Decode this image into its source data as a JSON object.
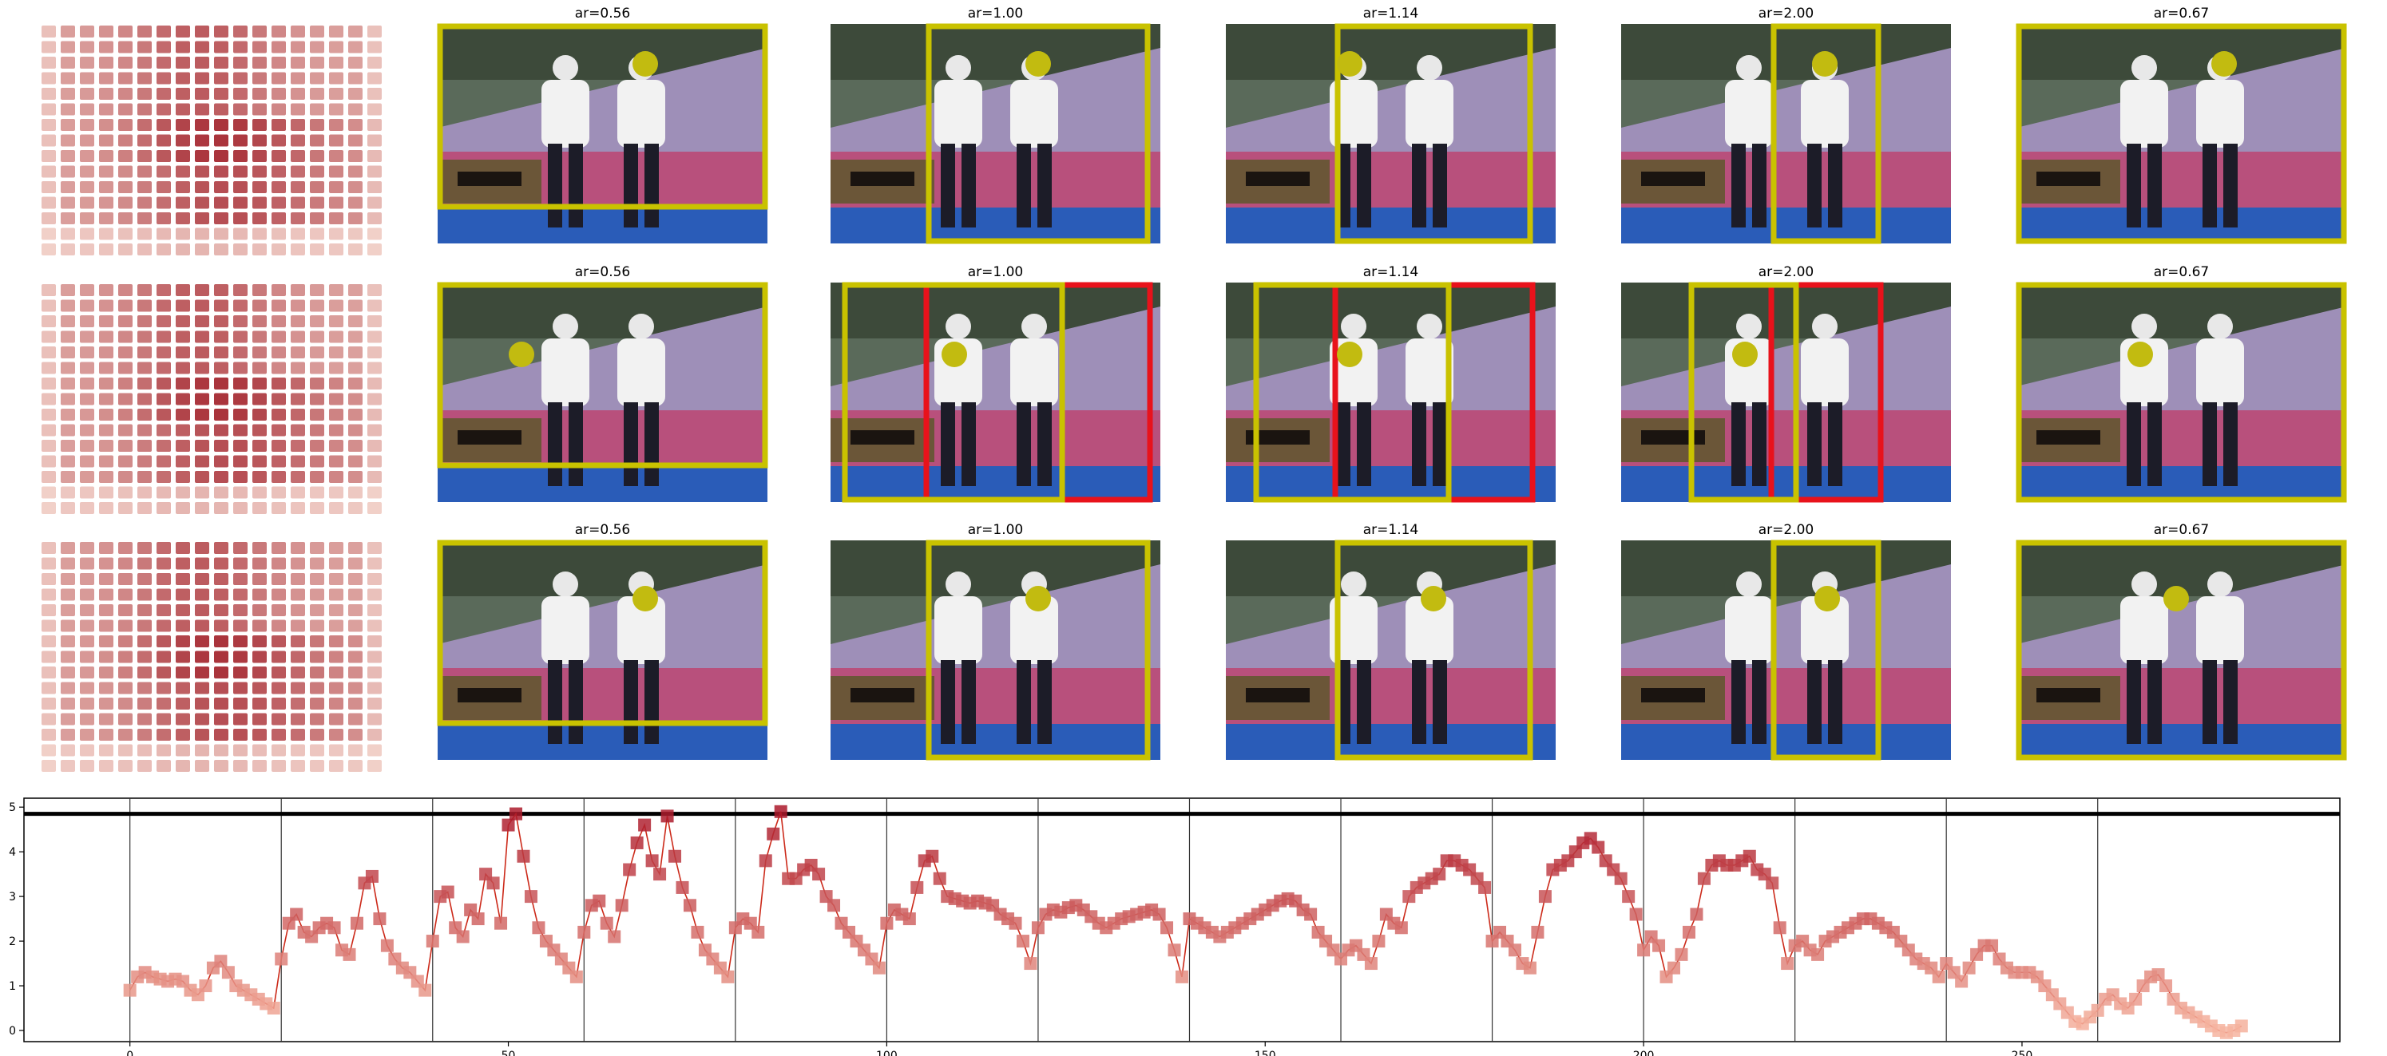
{
  "figure": {
    "rows": [
      {
        "titles": [
          "ar=0.56",
          "ar=1.00",
          "ar=1.14",
          "ar=2.00",
          "ar=0.67"
        ]
      },
      {
        "titles": [
          "ar=0.56",
          "ar=1.00",
          "ar=1.14",
          "ar=2.00",
          "ar=0.67"
        ]
      },
      {
        "titles": [
          "ar=0.56",
          "ar=1.00",
          "ar=1.14",
          "ar=2.00",
          "ar=0.67"
        ]
      }
    ],
    "colors": {
      "box": "#c9c200",
      "alt_box": "#e8121b",
      "marker": "#c2bb10"
    }
  },
  "chart_data": {
    "type": "line",
    "title": "",
    "xlabel": "",
    "ylabel": "",
    "xlim": [
      -14,
      292
    ],
    "ylim": [
      -0.25,
      5.2
    ],
    "xticks": [
      0,
      50,
      100,
      150,
      200,
      250
    ],
    "yticks": [
      0,
      1,
      2,
      3,
      4,
      5
    ],
    "hline": 4.85,
    "vlines": [
      0,
      20,
      40,
      60,
      80,
      100,
      120,
      140,
      160,
      180,
      200,
      220,
      240,
      260
    ],
    "grid": false,
    "color": "#cc2a1a",
    "y": [
      0.9,
      1.2,
      1.3,
      1.2,
      1.15,
      1.1,
      1.15,
      1.1,
      0.9,
      0.8,
      1.0,
      1.4,
      1.55,
      1.3,
      1.0,
      0.9,
      0.8,
      0.7,
      0.6,
      0.5,
      1.6,
      2.4,
      2.6,
      2.2,
      2.1,
      2.3,
      2.4,
      2.3,
      1.8,
      1.7,
      2.4,
      3.3,
      3.45,
      2.5,
      1.9,
      1.6,
      1.4,
      1.3,
      1.1,
      0.9,
      2.0,
      3.0,
      3.1,
      2.3,
      2.1,
      2.7,
      2.5,
      3.5,
      3.3,
      2.4,
      4.6,
      4.85,
      3.9,
      3.0,
      2.3,
      2.0,
      1.8,
      1.6,
      1.4,
      1.2,
      2.2,
      2.8,
      2.9,
      2.4,
      2.1,
      2.8,
      3.6,
      4.2,
      4.6,
      3.8,
      3.5,
      4.8,
      3.9,
      3.2,
      2.8,
      2.2,
      1.8,
      1.6,
      1.4,
      1.2,
      2.3,
      2.5,
      2.4,
      2.2,
      3.8,
      4.4,
      4.9,
      3.4,
      3.4,
      3.6,
      3.7,
      3.5,
      3.0,
      2.8,
      2.4,
      2.2,
      2.0,
      1.8,
      1.6,
      1.4,
      2.4,
      2.7,
      2.6,
      2.5,
      3.2,
      3.8,
      3.9,
      3.4,
      3.0,
      2.95,
      2.9,
      2.85,
      2.9,
      2.85,
      2.8,
      2.6,
      2.5,
      2.4,
      2.0,
      1.5,
      2.3,
      2.6,
      2.7,
      2.65,
      2.75,
      2.8,
      2.7,
      2.55,
      2.4,
      2.3,
      2.4,
      2.5,
      2.55,
      2.6,
      2.65,
      2.7,
      2.6,
      2.3,
      1.8,
      1.2,
      2.5,
      2.4,
      2.3,
      2.2,
      2.1,
      2.2,
      2.3,
      2.4,
      2.5,
      2.6,
      2.7,
      2.8,
      2.9,
      2.95,
      2.9,
      2.7,
      2.6,
      2.2,
      2.0,
      1.8,
      1.6,
      1.8,
      1.9,
      1.7,
      1.5,
      2.0,
      2.6,
      2.4,
      2.3,
      3.0,
      3.2,
      3.3,
      3.4,
      3.5,
      3.8,
      3.8,
      3.7,
      3.6,
      3.4,
      3.2,
      2.0,
      2.2,
      2.0,
      1.8,
      1.5,
      1.4,
      2.2,
      3.0,
      3.6,
      3.7,
      3.8,
      4.0,
      4.2,
      4.3,
      4.1,
      3.8,
      3.6,
      3.4,
      3.0,
      2.6,
      1.8,
      2.1,
      1.9,
      1.2,
      1.4,
      1.7,
      2.2,
      2.6,
      3.4,
      3.7,
      3.8,
      3.7,
      3.7,
      3.8,
      3.9,
      3.6,
      3.5,
      3.3,
      2.3,
      1.5,
      1.9,
      2.0,
      1.8,
      1.7,
      2.0,
      2.1,
      2.2,
      2.3,
      2.4,
      2.5,
      2.5,
      2.4,
      2.3,
      2.2,
      2.0,
      1.8,
      1.6,
      1.5,
      1.4,
      1.2,
      1.5,
      1.3,
      1.1,
      1.4,
      1.7,
      1.9,
      1.9,
      1.6,
      1.4,
      1.3,
      1.3,
      1.3,
      1.2,
      1.0,
      0.8,
      0.6,
      0.4,
      0.2,
      0.15,
      0.3,
      0.45,
      0.7,
      0.8,
      0.6,
      0.5,
      0.7,
      1.0,
      1.2,
      1.25,
      1.0,
      0.7,
      0.5,
      0.4,
      0.3,
      0.2,
      0.1,
      0.0,
      -0.05,
      0.0,
      0.1
    ]
  }
}
